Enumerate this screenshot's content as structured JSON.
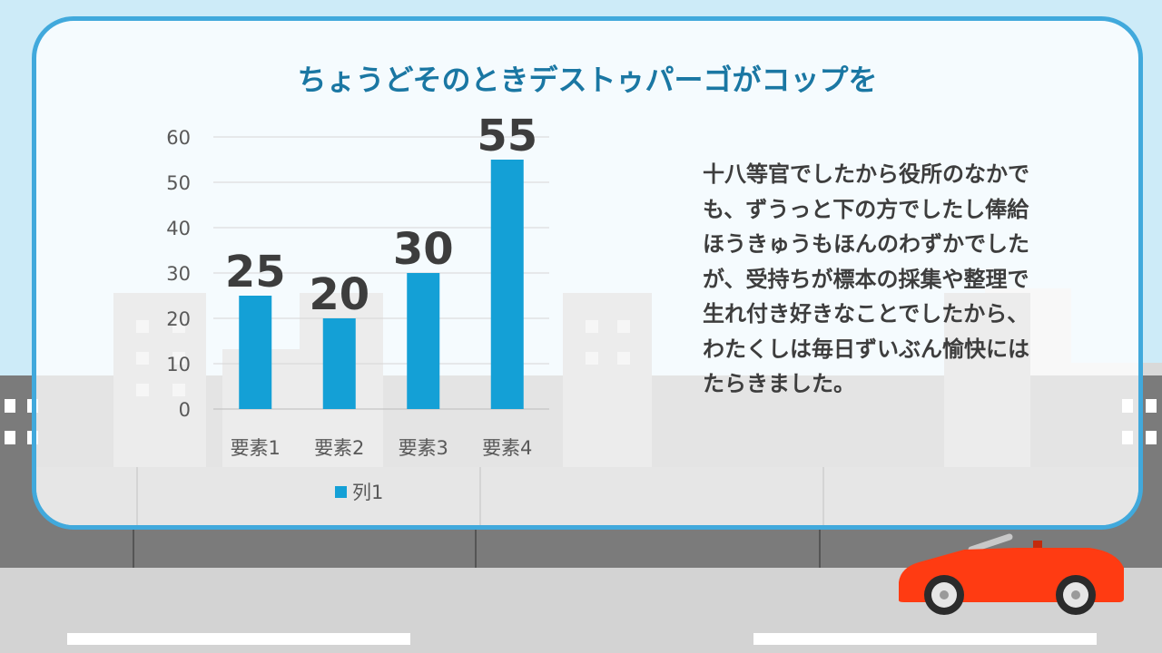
{
  "slide": {
    "title": "ちょうどそのときデストゥパーゴがコップを",
    "body": "十八等官でしたから役所のなかでも、ずうっと下の方でしたし俸給ほうきゅうもほんのわずかでしたが、受持ちが標本の採集や整理で生れ付き好きなことでしたから、わたくしは毎日ずいぶん愉快にはたらきました。"
  },
  "colors": {
    "sky": "#cdebf8",
    "frame": "#41a9dc",
    "title": "#1a77a3",
    "bar": "#14a0d6",
    "car": "#ff3b12",
    "road": "#d3d3d3",
    "wall": "#7b7b7b"
  },
  "chart_data": {
    "type": "bar",
    "categories": [
      "要素1",
      "要素2",
      "要素3",
      "要素4"
    ],
    "series": [
      {
        "name": "列1",
        "values": [
          25,
          20,
          30,
          55
        ]
      }
    ],
    "ylim": [
      0,
      60
    ],
    "yticks": [
      0,
      10,
      20,
      30,
      40,
      50,
      60
    ],
    "data_labels": true,
    "grid": true,
    "legend": "bottom"
  }
}
